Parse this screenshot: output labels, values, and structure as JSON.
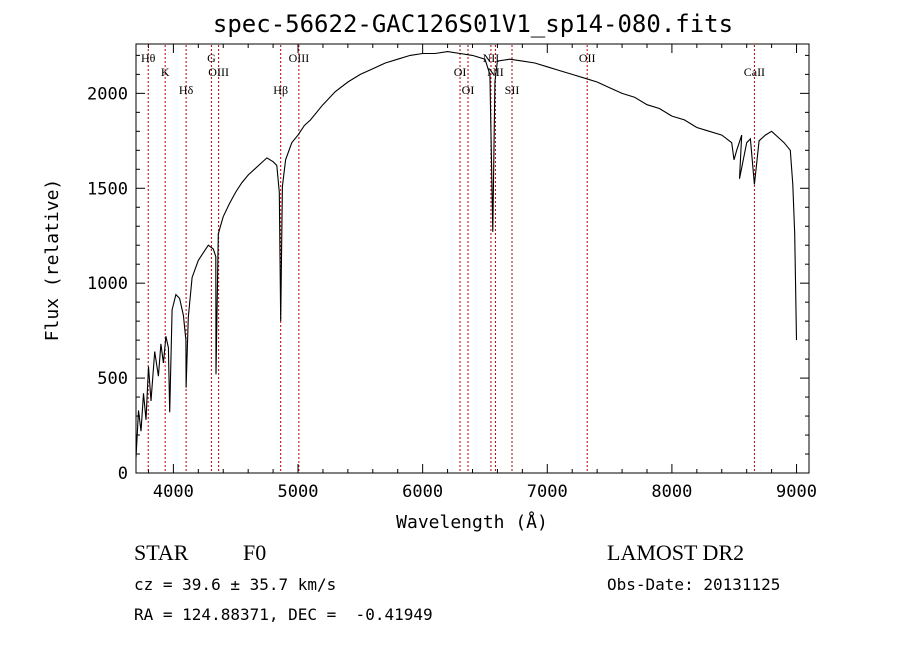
{
  "chart_data": {
    "type": "line",
    "title": "spec-56622-GAC126S01V1_sp14-080.fits",
    "xlabel": "Wavelength (Å)",
    "ylabel": "Flux (relative)",
    "xlim": [
      3700,
      9100
    ],
    "ylim": [
      0,
      2260
    ],
    "xticks": [
      4000,
      5000,
      6000,
      7000,
      8000,
      9000
    ],
    "yticks": [
      0,
      500,
      1000,
      1500,
      2000
    ],
    "grid": false,
    "series": [
      {
        "color": "#000000",
        "x": [
          3700,
          3720,
          3740,
          3760,
          3780,
          3800,
          3820,
          3850,
          3880,
          3900,
          3920,
          3940,
          3960,
          3970,
          3990,
          4020,
          4050,
          4080,
          4100,
          4102,
          4120,
          4150,
          4200,
          4250,
          4280,
          4300,
          4320,
          4340,
          4342,
          4360,
          4400,
          4450,
          4500,
          4550,
          4600,
          4650,
          4700,
          4750,
          4800,
          4830,
          4850,
          4861,
          4875,
          4900,
          4950,
          5000,
          5050,
          5100,
          5200,
          5300,
          5400,
          5500,
          5600,
          5700,
          5800,
          5900,
          6000,
          6100,
          6200,
          6300,
          6400,
          6500,
          6540,
          6563,
          6580,
          6600,
          6700,
          6800,
          6900,
          7000,
          7100,
          7200,
          7300,
          7400,
          7500,
          7600,
          7700,
          7800,
          7900,
          8000,
          8100,
          8200,
          8300,
          8400,
          8480,
          8498,
          8520,
          8560,
          8542,
          8600,
          8630,
          8662,
          8700,
          8750,
          8800,
          8850,
          8900,
          8950,
          8970,
          8985,
          9000
        ],
        "y": [
          80,
          330,
          220,
          420,
          280,
          560,
          380,
          640,
          510,
          680,
          580,
          720,
          660,
          320,
          860,
          940,
          920,
          830,
          700,
          450,
          820,
          1030,
          1120,
          1170,
          1200,
          1190,
          1180,
          1140,
          520,
          1260,
          1350,
          1420,
          1480,
          1530,
          1570,
          1600,
          1630,
          1660,
          1640,
          1620,
          1480,
          800,
          1510,
          1650,
          1740,
          1780,
          1830,
          1860,
          1940,
          2010,
          2060,
          2100,
          2130,
          2160,
          2180,
          2200,
          2210,
          2210,
          2220,
          2210,
          2200,
          2180,
          2100,
          1270,
          2060,
          2170,
          2180,
          2170,
          2160,
          2140,
          2120,
          2100,
          2080,
          2060,
          2030,
          2000,
          1980,
          1940,
          1920,
          1880,
          1860,
          1820,
          1800,
          1780,
          1740,
          1650,
          1700,
          1780,
          1550,
          1740,
          1760,
          1520,
          1750,
          1780,
          1800,
          1770,
          1740,
          1700,
          1520,
          1260,
          700
        ]
      }
    ],
    "lines": [
      {
        "label": "Hθ",
        "x": 3798
      },
      {
        "label": "K",
        "x": 3934
      },
      {
        "label": "Hδ",
        "x": 4102
      },
      {
        "label": "G",
        "x": 4305
      },
      {
        "label": "OIII",
        "x": 4363
      },
      {
        "label": "Hβ",
        "x": 4861
      },
      {
        "label": "OIII",
        "x": 5007
      },
      {
        "label": "OI",
        "x": 6300
      },
      {
        "label": "OI",
        "x": 6364
      },
      {
        "label": "NII",
        "x": 6548
      },
      {
        "label": "NII",
        "x": 6584
      },
      {
        "label": "SII",
        "x": 6717
      },
      {
        "label": "OII",
        "x": 7320
      },
      {
        "label": "CaII",
        "x": 8662
      }
    ]
  },
  "info": {
    "class_label": "STAR",
    "subclass_label": "F0",
    "survey_label": "LAMOST DR2",
    "cz_text": "cz = 39.6 ± 35.7 km/s",
    "obsdate_text": "Obs-Date: 20131125",
    "radec_text": "RA = 124.88371, DEC =  -0.41949"
  }
}
